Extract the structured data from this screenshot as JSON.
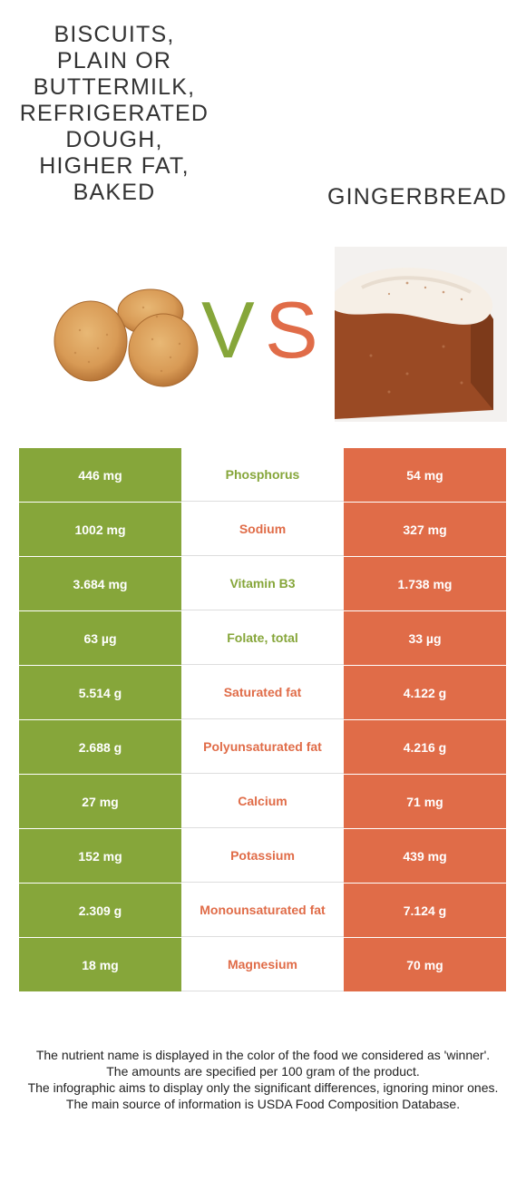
{
  "colors": {
    "left": "#86a63a",
    "right": "#e06c48"
  },
  "food_left": {
    "name": "Biscuits, plain or buttermilk, refrigerated dough, higher fat, baked",
    "lines": [
      "BISCUITS,",
      "PLAIN OR",
      "BUTTERMILK,",
      "REFRIGERATED",
      "DOUGH,",
      "HIGHER FAT,",
      "BAKED"
    ]
  },
  "food_right": {
    "name": "GINGERBREAD"
  },
  "vs": {
    "v": "V",
    "s": "S"
  },
  "rows": [
    {
      "left": "446 mg",
      "nutrient": "Phosphorus",
      "right": "54 mg",
      "winner": "left"
    },
    {
      "left": "1002 mg",
      "nutrient": "Sodium",
      "right": "327 mg",
      "winner": "right"
    },
    {
      "left": "3.684 mg",
      "nutrient": "Vitamin B3",
      "right": "1.738 mg",
      "winner": "left"
    },
    {
      "left": "63 µg",
      "nutrient": "Folate, total",
      "right": "33 µg",
      "winner": "left"
    },
    {
      "left": "5.514 g",
      "nutrient": "Saturated fat",
      "right": "4.122 g",
      "winner": "right"
    },
    {
      "left": "2.688 g",
      "nutrient": "Polyunsaturated fat",
      "right": "4.216 g",
      "winner": "right"
    },
    {
      "left": "27 mg",
      "nutrient": "Calcium",
      "right": "71 mg",
      "winner": "right"
    },
    {
      "left": "152 mg",
      "nutrient": "Potassium",
      "right": "439 mg",
      "winner": "right"
    },
    {
      "left": "2.309 g",
      "nutrient": "Monounsaturated fat",
      "right": "7.124 g",
      "winner": "right"
    },
    {
      "left": "18 mg",
      "nutrient": "Magnesium",
      "right": "70 mg",
      "winner": "right"
    }
  ],
  "footer": [
    "The nutrient name is displayed in the color of the food we considered as 'winner'.",
    "The amounts are specified per 100 gram of the product.",
    "The infographic aims to display only the significant differences, ignoring minor ones.",
    "The main source of information is USDA Food Composition Database."
  ]
}
